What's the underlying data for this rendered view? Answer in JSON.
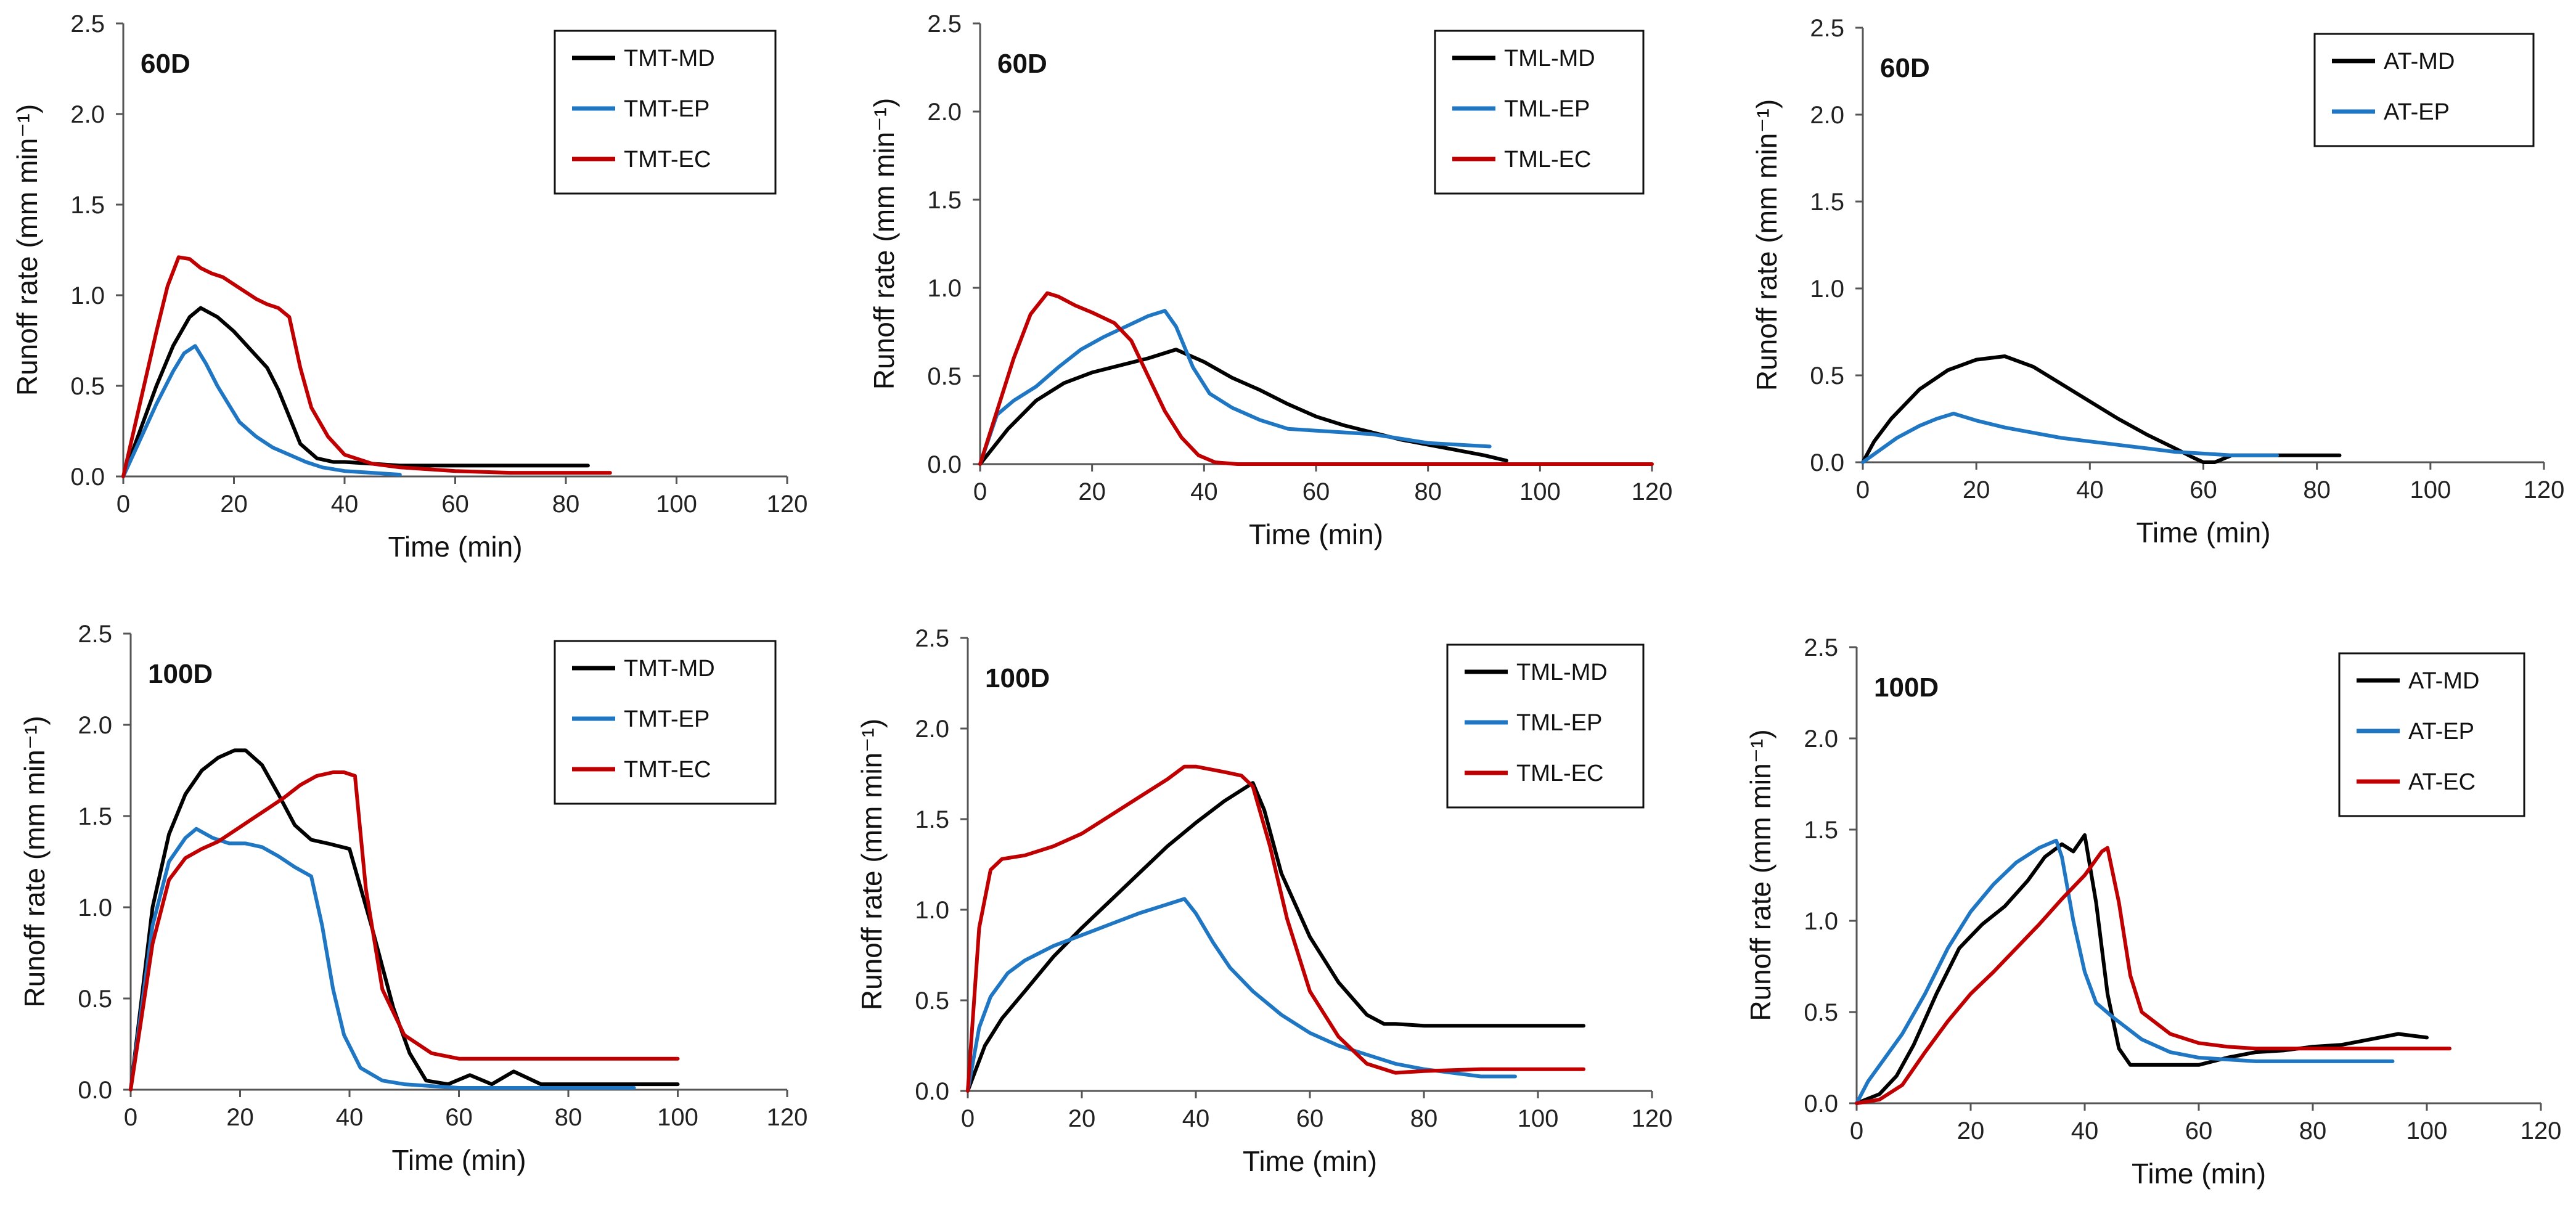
{
  "colors": {
    "MD": "#000000",
    "EP": "#1f77c4",
    "EC": "#c00000",
    "axis": "#555555"
  },
  "chart_data": [
    {
      "type": "line",
      "panel_tag": "60D",
      "xlabel": "Time (min)",
      "ylabel": "Runoff rate (mm min⁻¹)",
      "xlim": [
        0,
        120
      ],
      "ylim": [
        0,
        2.5
      ],
      "xticks": [
        "0",
        "20",
        "40",
        "60",
        "80",
        "100",
        "120"
      ],
      "yticks": [
        "0.0",
        "0.5",
        "1.0",
        "1.5",
        "2.0",
        "2.5"
      ],
      "legend_position": "top-right",
      "series": [
        {
          "name": "TMT-MD",
          "color": "#000000",
          "x": [
            0,
            3,
            6,
            9,
            12,
            14,
            17,
            20,
            23,
            26,
            28,
            30,
            32,
            35,
            38,
            40,
            45,
            50,
            55,
            60,
            70,
            80,
            84
          ],
          "y": [
            0,
            0.25,
            0.5,
            0.72,
            0.88,
            0.93,
            0.88,
            0.8,
            0.7,
            0.6,
            0.48,
            0.33,
            0.18,
            0.1,
            0.08,
            0.08,
            0.07,
            0.06,
            0.06,
            0.06,
            0.06,
            0.06,
            0.06
          ]
        },
        {
          "name": "TMT-EP",
          "color": "#1f77c4",
          "x": [
            0,
            3,
            6,
            9,
            11,
            13,
            15,
            17,
            19,
            21,
            24,
            27,
            30,
            33,
            36,
            40,
            45,
            50
          ],
          "y": [
            0,
            0.2,
            0.4,
            0.58,
            0.68,
            0.72,
            0.62,
            0.5,
            0.4,
            0.3,
            0.22,
            0.16,
            0.12,
            0.08,
            0.05,
            0.03,
            0.02,
            0.01
          ]
        },
        {
          "name": "TMT-EC",
          "color": "#c00000",
          "x": [
            0,
            3,
            6,
            8,
            10,
            12,
            14,
            16,
            18,
            20,
            22,
            24,
            26,
            28,
            30,
            32,
            34,
            37,
            40,
            45,
            50,
            55,
            60,
            70,
            80,
            88
          ],
          "y": [
            0,
            0.4,
            0.8,
            1.05,
            1.21,
            1.2,
            1.15,
            1.12,
            1.1,
            1.06,
            1.02,
            0.98,
            0.95,
            0.93,
            0.88,
            0.6,
            0.38,
            0.22,
            0.12,
            0.07,
            0.05,
            0.04,
            0.03,
            0.02,
            0.02,
            0.02
          ]
        }
      ]
    },
    {
      "type": "line",
      "panel_tag": "60D",
      "xlabel": "Time (min)",
      "ylabel": "Runoff rate (mm min⁻¹)",
      "xlim": [
        0,
        120
      ],
      "ylim": [
        0,
        2.5
      ],
      "xticks": [
        "0",
        "20",
        "40",
        "60",
        "80",
        "100",
        "120"
      ],
      "yticks": [
        "0.0",
        "0.5",
        "1.0",
        "1.5",
        "2.0",
        "2.5"
      ],
      "legend_position": "top-right",
      "series": [
        {
          "name": "TML-MD",
          "color": "#000000",
          "x": [
            0,
            5,
            10,
            15,
            20,
            25,
            30,
            35,
            40,
            45,
            50,
            55,
            60,
            65,
            70,
            75,
            80,
            85,
            90,
            94
          ],
          "y": [
            0,
            0.2,
            0.36,
            0.46,
            0.52,
            0.56,
            0.6,
            0.65,
            0.58,
            0.49,
            0.42,
            0.34,
            0.27,
            0.22,
            0.18,
            0.14,
            0.11,
            0.08,
            0.05,
            0.02
          ]
        },
        {
          "name": "TML-EP",
          "color": "#1f77c4",
          "x": [
            0,
            3,
            6,
            10,
            14,
            18,
            22,
            26,
            30,
            33,
            35,
            38,
            41,
            45,
            50,
            55,
            60,
            70,
            80,
            91
          ],
          "y": [
            0,
            0.28,
            0.36,
            0.44,
            0.55,
            0.65,
            0.72,
            0.78,
            0.84,
            0.87,
            0.78,
            0.55,
            0.4,
            0.32,
            0.25,
            0.2,
            0.19,
            0.17,
            0.12,
            0.1
          ]
        },
        {
          "name": "TML-EC",
          "color": "#c00000",
          "x": [
            0,
            3,
            6,
            9,
            12,
            14,
            17,
            20,
            24,
            27,
            30,
            33,
            36,
            39,
            42,
            46,
            55,
            70,
            90,
            120
          ],
          "y": [
            0,
            0.3,
            0.6,
            0.85,
            0.97,
            0.95,
            0.9,
            0.86,
            0.8,
            0.7,
            0.5,
            0.3,
            0.15,
            0.05,
            0.01,
            0,
            0,
            0,
            0,
            0
          ]
        }
      ]
    },
    {
      "type": "line",
      "panel_tag": "60D",
      "xlabel": "Time (min)",
      "ylabel": "Runoff rate (mm min⁻¹)",
      "xlim": [
        0,
        120
      ],
      "ylim": [
        0,
        2.5
      ],
      "xticks": [
        "0",
        "20",
        "40",
        "60",
        "80",
        "100",
        "120"
      ],
      "yticks": [
        "0.0",
        "0.5",
        "1.0",
        "1.5",
        "2.0",
        "2.5"
      ],
      "legend_position": "top-right",
      "series": [
        {
          "name": "AT-MD",
          "color": "#000000",
          "x": [
            0,
            2,
            5,
            10,
            15,
            20,
            25,
            30,
            35,
            40,
            45,
            50,
            55,
            58,
            60,
            62,
            65,
            75,
            84
          ],
          "y": [
            0,
            0.12,
            0.25,
            0.42,
            0.53,
            0.59,
            0.61,
            0.55,
            0.45,
            0.35,
            0.25,
            0.16,
            0.08,
            0.03,
            0,
            0,
            0.04,
            0.04,
            0.04
          ]
        },
        {
          "name": "AT-EP",
          "color": "#1f77c4",
          "x": [
            0,
            3,
            6,
            10,
            13,
            16,
            20,
            25,
            30,
            35,
            40,
            45,
            50,
            55,
            60,
            65,
            73
          ],
          "y": [
            0,
            0.07,
            0.14,
            0.21,
            0.25,
            0.28,
            0.24,
            0.2,
            0.17,
            0.14,
            0.12,
            0.1,
            0.08,
            0.06,
            0.05,
            0.04,
            0.04
          ]
        }
      ]
    },
    {
      "type": "line",
      "panel_tag": "100D",
      "xlabel": "Time (min)",
      "ylabel": "Runoff rate (mm min⁻¹)",
      "xlim": [
        0,
        120
      ],
      "ylim": [
        0,
        2.5
      ],
      "xticks": [
        "0",
        "20",
        "40",
        "60",
        "80",
        "100",
        "120"
      ],
      "yticks": [
        "0.0",
        "0.5",
        "1.0",
        "1.5",
        "2.0",
        "2.5"
      ],
      "legend_position": "top-right",
      "series": [
        {
          "name": "TMT-MD",
          "color": "#000000",
          "x": [
            0,
            2,
            4,
            7,
            10,
            13,
            16,
            19,
            21,
            24,
            27,
            30,
            33,
            36,
            40,
            44,
            48,
            51,
            54,
            58,
            62,
            66,
            70,
            75,
            80,
            90,
            100
          ],
          "y": [
            0,
            0.5,
            1.0,
            1.4,
            1.62,
            1.75,
            1.82,
            1.86,
            1.86,
            1.78,
            1.62,
            1.45,
            1.37,
            1.35,
            1.32,
            0.9,
            0.45,
            0.2,
            0.05,
            0.03,
            0.08,
            0.03,
            0.1,
            0.03,
            0.03,
            0.03,
            0.03
          ]
        },
        {
          "name": "TMT-EP",
          "color": "#1f77c4",
          "x": [
            0,
            2,
            4,
            7,
            10,
            12,
            15,
            18,
            21,
            24,
            27,
            30,
            33,
            35,
            37,
            39,
            42,
            46,
            50,
            55,
            60,
            70,
            80,
            92
          ],
          "y": [
            0,
            0.45,
            0.9,
            1.25,
            1.38,
            1.43,
            1.38,
            1.35,
            1.35,
            1.33,
            1.28,
            1.22,
            1.17,
            0.9,
            0.55,
            0.3,
            0.12,
            0.05,
            0.03,
            0.02,
            0.01,
            0.01,
            0.01,
            0.01
          ]
        },
        {
          "name": "TMT-EC",
          "color": "#c00000",
          "x": [
            0,
            2,
            4,
            7,
            10,
            13,
            16,
            19,
            22,
            25,
            28,
            31,
            34,
            37,
            39,
            41,
            43,
            46,
            50,
            55,
            60,
            65,
            70,
            75,
            80,
            90,
            100
          ],
          "y": [
            0,
            0.4,
            0.8,
            1.15,
            1.27,
            1.32,
            1.36,
            1.42,
            1.48,
            1.54,
            1.6,
            1.67,
            1.72,
            1.74,
            1.74,
            1.72,
            1.1,
            0.55,
            0.3,
            0.2,
            0.17,
            0.17,
            0.17,
            0.17,
            0.17,
            0.17,
            0.17
          ]
        }
      ]
    },
    {
      "type": "line",
      "panel_tag": "100D",
      "xlabel": "Time (min)",
      "ylabel": "Runoff rate (mm min⁻¹)",
      "xlim": [
        0,
        120
      ],
      "ylim": [
        0,
        2.5
      ],
      "xticks": [
        "0",
        "20",
        "40",
        "60",
        "80",
        "100",
        "120"
      ],
      "yticks": [
        "0.0",
        "0.5",
        "1.0",
        "1.5",
        "2.0",
        "2.5"
      ],
      "legend_position": "top-right",
      "series": [
        {
          "name": "TML-MD",
          "color": "#000000",
          "x": [
            0,
            3,
            6,
            10,
            15,
            20,
            25,
            30,
            35,
            40,
            45,
            48,
            50,
            52,
            55,
            60,
            65,
            70,
            73,
            75,
            80,
            90,
            100,
            108
          ],
          "y": [
            0,
            0.25,
            0.4,
            0.55,
            0.74,
            0.9,
            1.05,
            1.2,
            1.35,
            1.48,
            1.6,
            1.66,
            1.7,
            1.55,
            1.2,
            0.85,
            0.6,
            0.42,
            0.37,
            0.37,
            0.36,
            0.36,
            0.36,
            0.36
          ]
        },
        {
          "name": "TML-EP",
          "color": "#1f77c4",
          "x": [
            0,
            2,
            4,
            7,
            10,
            15,
            20,
            25,
            30,
            35,
            38,
            40,
            43,
            46,
            50,
            55,
            60,
            65,
            70,
            75,
            80,
            85,
            90,
            96
          ],
          "y": [
            0,
            0.35,
            0.52,
            0.65,
            0.72,
            0.8,
            0.86,
            0.92,
            0.98,
            1.03,
            1.06,
            0.98,
            0.82,
            0.68,
            0.55,
            0.42,
            0.32,
            0.25,
            0.2,
            0.15,
            0.12,
            0.1,
            0.08,
            0.08
          ]
        },
        {
          "name": "TML-EC",
          "color": "#c00000",
          "x": [
            0,
            2,
            4,
            6,
            10,
            15,
            20,
            25,
            30,
            35,
            38,
            40,
            45,
            48,
            50,
            53,
            56,
            60,
            65,
            70,
            75,
            80,
            90,
            108
          ],
          "y": [
            0,
            0.9,
            1.22,
            1.28,
            1.3,
            1.35,
            1.42,
            1.52,
            1.62,
            1.72,
            1.79,
            1.79,
            1.76,
            1.74,
            1.68,
            1.35,
            0.95,
            0.55,
            0.3,
            0.15,
            0.1,
            0.11,
            0.12,
            0.12
          ]
        }
      ]
    },
    {
      "type": "line",
      "panel_tag": "100D",
      "xlabel": "Time (min)",
      "ylabel": "Runoff rate (mm min⁻¹)",
      "xlim": [
        0,
        120
      ],
      "ylim": [
        0,
        2.5
      ],
      "xticks": [
        "0",
        "20",
        "40",
        "60",
        "80",
        "100",
        "120"
      ],
      "yticks": [
        "0.0",
        "0.5",
        "1.0",
        "1.5",
        "2.0",
        "2.5"
      ],
      "legend_position": "top-right",
      "series": [
        {
          "name": "AT-MD",
          "color": "#000000",
          "x": [
            0,
            4,
            7,
            10,
            14,
            18,
            22,
            26,
            30,
            33,
            36,
            38,
            40,
            42,
            44,
            46,
            48,
            50,
            55,
            60,
            65,
            70,
            75,
            80,
            85,
            90,
            95,
            100
          ],
          "y": [
            0,
            0.05,
            0.15,
            0.32,
            0.6,
            0.85,
            0.98,
            1.08,
            1.22,
            1.35,
            1.42,
            1.38,
            1.47,
            1.1,
            0.6,
            0.3,
            0.21,
            0.21,
            0.21,
            0.21,
            0.25,
            0.28,
            0.29,
            0.31,
            0.32,
            0.35,
            0.38,
            0.36
          ]
        },
        {
          "name": "AT-EP",
          "color": "#1f77c4",
          "x": [
            0,
            2,
            5,
            8,
            12,
            16,
            20,
            24,
            28,
            32,
            35,
            36,
            38,
            40,
            42,
            45,
            50,
            55,
            60,
            65,
            70,
            80,
            94
          ],
          "y": [
            0,
            0.12,
            0.25,
            0.38,
            0.6,
            0.85,
            1.05,
            1.2,
            1.32,
            1.4,
            1.44,
            1.35,
            1.0,
            0.72,
            0.55,
            0.47,
            0.35,
            0.28,
            0.25,
            0.24,
            0.23,
            0.23,
            0.23
          ]
        },
        {
          "name": "AT-EC",
          "color": "#c00000",
          "x": [
            0,
            4,
            8,
            12,
            16,
            20,
            24,
            28,
            32,
            36,
            40,
            43,
            44,
            46,
            48,
            50,
            55,
            60,
            65,
            70,
            80,
            90,
            104
          ],
          "y": [
            0,
            0.02,
            0.1,
            0.28,
            0.45,
            0.6,
            0.72,
            0.85,
            0.98,
            1.12,
            1.25,
            1.38,
            1.4,
            1.1,
            0.7,
            0.5,
            0.38,
            0.33,
            0.31,
            0.3,
            0.3,
            0.3,
            0.3
          ]
        }
      ]
    }
  ]
}
